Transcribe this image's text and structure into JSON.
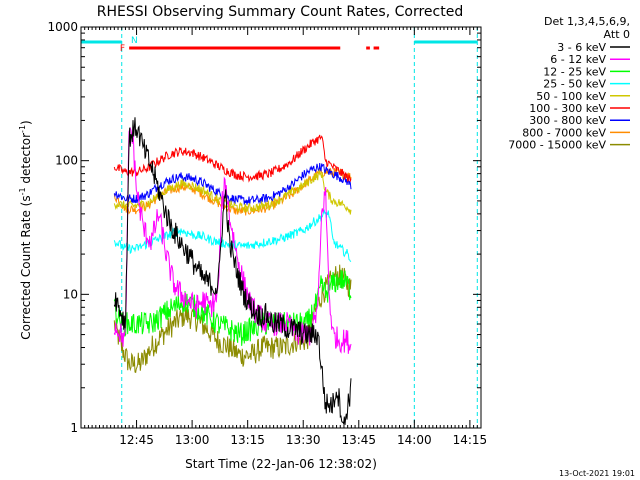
{
  "chart_data": {
    "type": "line",
    "title": "RHESSI Observing Summary Count Rates, Corrected",
    "xlabel": "Start Time (22-Jan-06 12:38:02)",
    "ylabel": "Corrected Count Rate (s",
    "ylabel_sup1": "-1",
    "ylabel_mid": " detector",
    "ylabel_sup2": "-1",
    "ylabel_end": ")",
    "y_scale": "log",
    "ylim": [
      1,
      1000
    ],
    "xlim_minutes": [
      -8,
      100
    ],
    "x_ticks": [
      {
        "label": "12:45",
        "minute": 7
      },
      {
        "label": "13:00",
        "minute": 22
      },
      {
        "label": "13:15",
        "minute": 37
      },
      {
        "label": "13:30",
        "minute": 52
      },
      {
        "label": "13:45",
        "minute": 67
      },
      {
        "label": "14:00",
        "minute": 82
      },
      {
        "label": "14:15",
        "minute": 97
      }
    ],
    "y_ticks": [
      {
        "label": "1",
        "value": 1
      },
      {
        "label": "10",
        "value": 10
      },
      {
        "label": "100",
        "value": 100
      },
      {
        "label": "1000",
        "value": 1000
      }
    ],
    "legend": {
      "placement": "right",
      "header1": "Det 1,3,4,5,6,9,",
      "header2": "Att 0"
    },
    "series": [
      {
        "name": "3 - 6 keV",
        "color": "#000000",
        "points": [
          [
            1,
            10
          ],
          [
            4,
            6
          ],
          [
            5,
            150
          ],
          [
            7,
            180
          ],
          [
            9,
            120
          ],
          [
            11,
            90
          ],
          [
            13,
            60
          ],
          [
            15,
            40
          ],
          [
            17,
            30
          ],
          [
            19,
            24
          ],
          [
            21,
            20
          ],
          [
            23,
            16
          ],
          [
            25,
            13
          ],
          [
            27,
            12
          ],
          [
            29,
            11
          ],
          [
            30,
            30
          ],
          [
            31,
            60
          ],
          [
            32,
            25
          ],
          [
            34,
            15
          ],
          [
            36,
            10
          ],
          [
            38,
            8
          ],
          [
            40,
            7
          ],
          [
            42,
            7
          ],
          [
            44,
            6
          ],
          [
            46,
            6
          ],
          [
            48,
            5.5
          ],
          [
            50,
            5.5
          ],
          [
            52,
            5
          ],
          [
            54,
            5
          ],
          [
            56,
            5
          ],
          [
            58,
            1.5
          ],
          [
            60,
            1.5
          ],
          [
            61,
            2
          ],
          [
            62,
            1.5
          ],
          [
            63,
            1
          ],
          [
            64,
            1.5
          ],
          [
            65,
            2
          ]
        ]
      },
      {
        "name": "6 - 12 keV",
        "color": "#ff00ff",
        "points": [
          [
            1,
            6
          ],
          [
            4,
            4.5
          ],
          [
            5,
            180
          ],
          [
            6,
            150
          ],
          [
            7,
            60
          ],
          [
            9,
            30
          ],
          [
            11,
            25
          ],
          [
            13,
            40
          ],
          [
            15,
            20
          ],
          [
            17,
            12
          ],
          [
            19,
            10
          ],
          [
            21,
            9
          ],
          [
            23,
            8
          ],
          [
            25,
            9
          ],
          [
            27,
            8
          ],
          [
            29,
            10
          ],
          [
            30,
            45
          ],
          [
            31,
            70
          ],
          [
            32,
            40
          ],
          [
            34,
            20
          ],
          [
            36,
            12
          ],
          [
            38,
            8
          ],
          [
            40,
            7
          ],
          [
            42,
            6
          ],
          [
            44,
            6
          ],
          [
            46,
            6
          ],
          [
            48,
            6
          ],
          [
            50,
            5
          ],
          [
            52,
            5
          ],
          [
            54,
            5
          ],
          [
            56,
            8
          ],
          [
            57,
            40
          ],
          [
            58,
            60
          ],
          [
            59,
            10
          ],
          [
            60,
            5
          ],
          [
            62,
            4.5
          ],
          [
            64,
            4.5
          ],
          [
            65,
            4
          ]
        ]
      },
      {
        "name": "12 - 25 keV",
        "color": "#00ff00",
        "points": [
          [
            1,
            8
          ],
          [
            3,
            6
          ],
          [
            5,
            6
          ],
          [
            8,
            6
          ],
          [
            11,
            6
          ],
          [
            14,
            7
          ],
          [
            17,
            8
          ],
          [
            20,
            9
          ],
          [
            23,
            8
          ],
          [
            26,
            7
          ],
          [
            29,
            6
          ],
          [
            32,
            5.5
          ],
          [
            35,
            5
          ],
          [
            38,
            5.5
          ],
          [
            41,
            6
          ],
          [
            44,
            6
          ],
          [
            47,
            6
          ],
          [
            50,
            6
          ],
          [
            53,
            6
          ],
          [
            56,
            9
          ],
          [
            57,
            12
          ],
          [
            58,
            10
          ],
          [
            60,
            12
          ],
          [
            62,
            13
          ],
          [
            64,
            12
          ],
          [
            65,
            10
          ]
        ]
      },
      {
        "name": "25 - 50 keV",
        "color": "#00ffff",
        "points": [
          [
            1,
            25
          ],
          [
            4,
            22
          ],
          [
            7,
            22
          ],
          [
            10,
            24
          ],
          [
            13,
            26
          ],
          [
            16,
            28
          ],
          [
            19,
            30
          ],
          [
            22,
            28
          ],
          [
            25,
            27
          ],
          [
            28,
            25
          ],
          [
            31,
            24
          ],
          [
            34,
            23
          ],
          [
            37,
            23
          ],
          [
            40,
            24
          ],
          [
            43,
            25
          ],
          [
            46,
            26
          ],
          [
            49,
            28
          ],
          [
            52,
            30
          ],
          [
            55,
            35
          ],
          [
            58,
            40
          ],
          [
            59,
            40
          ],
          [
            60,
            25
          ],
          [
            62,
            22
          ],
          [
            64,
            20
          ],
          [
            65,
            18
          ]
        ]
      },
      {
        "name": "50 - 100 keV",
        "color": "#cfc700",
        "points": [
          [
            1,
            48
          ],
          [
            4,
            46
          ],
          [
            7,
            46
          ],
          [
            10,
            48
          ],
          [
            13,
            55
          ],
          [
            16,
            62
          ],
          [
            19,
            67
          ],
          [
            22,
            65
          ],
          [
            25,
            60
          ],
          [
            28,
            53
          ],
          [
            31,
            48
          ],
          [
            34,
            45
          ],
          [
            37,
            44
          ],
          [
            40,
            45
          ],
          [
            43,
            47
          ],
          [
            46,
            52
          ],
          [
            49,
            58
          ],
          [
            52,
            65
          ],
          [
            55,
            75
          ],
          [
            57,
            80
          ],
          [
            58,
            60
          ],
          [
            60,
            50
          ],
          [
            62,
            48
          ],
          [
            64,
            45
          ],
          [
            65,
            42
          ]
        ]
      },
      {
        "name": "100 - 300 keV",
        "color": "#ff0000",
        "points": [
          [
            1,
            90
          ],
          [
            4,
            82
          ],
          [
            7,
            82
          ],
          [
            10,
            88
          ],
          [
            13,
            100
          ],
          [
            16,
            112
          ],
          [
            19,
            118
          ],
          [
            22,
            115
          ],
          [
            25,
            105
          ],
          [
            28,
            95
          ],
          [
            31,
            85
          ],
          [
            34,
            78
          ],
          [
            37,
            76
          ],
          [
            40,
            77
          ],
          [
            43,
            80
          ],
          [
            46,
            88
          ],
          [
            49,
            100
          ],
          [
            52,
            120
          ],
          [
            55,
            140
          ],
          [
            57,
            150
          ],
          [
            58,
            100
          ],
          [
            60,
            90
          ],
          [
            62,
            82
          ],
          [
            64,
            75
          ],
          [
            65,
            70
          ]
        ]
      },
      {
        "name": "300 - 800 keV",
        "color": "#0000ff",
        "points": [
          [
            1,
            58
          ],
          [
            4,
            52
          ],
          [
            7,
            52
          ],
          [
            10,
            56
          ],
          [
            13,
            65
          ],
          [
            16,
            72
          ],
          [
            19,
            76
          ],
          [
            22,
            74
          ],
          [
            25,
            68
          ],
          [
            28,
            60
          ],
          [
            31,
            54
          ],
          [
            34,
            51
          ],
          [
            37,
            50
          ],
          [
            40,
            51
          ],
          [
            43,
            53
          ],
          [
            46,
            58
          ],
          [
            49,
            66
          ],
          [
            52,
            78
          ],
          [
            55,
            88
          ],
          [
            57,
            90
          ],
          [
            58,
            85
          ],
          [
            60,
            80
          ],
          [
            62,
            75
          ],
          [
            64,
            70
          ],
          [
            65,
            65
          ]
        ]
      },
      {
        "name": "800 - 7000 keV",
        "color": "#ff8c00",
        "points": [
          [
            1,
            55
          ],
          [
            4,
            44
          ],
          [
            7,
            43
          ],
          [
            10,
            46
          ],
          [
            13,
            54
          ],
          [
            16,
            60
          ],
          [
            19,
            64
          ],
          [
            22,
            62
          ],
          [
            25,
            56
          ],
          [
            28,
            50
          ],
          [
            31,
            45
          ],
          [
            34,
            42
          ],
          [
            37,
            42
          ],
          [
            40,
            43
          ],
          [
            43,
            45
          ],
          [
            46,
            50
          ],
          [
            49,
            56
          ],
          [
            52,
            66
          ],
          [
            55,
            76
          ],
          [
            57,
            82
          ],
          [
            58,
            82
          ],
          [
            60,
            82
          ],
          [
            62,
            80
          ],
          [
            64,
            78
          ],
          [
            65,
            75
          ]
        ]
      },
      {
        "name": "7000 - 15000 keV",
        "color": "#8b8b00",
        "points": [
          [
            1,
            6
          ],
          [
            3,
            4
          ],
          [
            5,
            3
          ],
          [
            8,
            3
          ],
          [
            11,
            4
          ],
          [
            14,
            5
          ],
          [
            17,
            6
          ],
          [
            20,
            7
          ],
          [
            23,
            6.5
          ],
          [
            26,
            5.5
          ],
          [
            29,
            4.5
          ],
          [
            32,
            4
          ],
          [
            35,
            3.5
          ],
          [
            38,
            3.5
          ],
          [
            41,
            4
          ],
          [
            44,
            4
          ],
          [
            47,
            4
          ],
          [
            50,
            4.5
          ],
          [
            53,
            4.5
          ],
          [
            55,
            7
          ],
          [
            57,
            10
          ],
          [
            59,
            12
          ],
          [
            61,
            14
          ],
          [
            63,
            13
          ],
          [
            65,
            11
          ]
        ]
      }
    ],
    "annotations": {
      "intervals": [
        {
          "label": "N",
          "color": "#00e6e6",
          "segments": [
            [
              -8,
              3
            ],
            [
              82,
              99
            ]
          ]
        },
        {
          "label": "F",
          "color": "#ff0000",
          "segments": [
            [
              5,
              62
            ],
            [
              69,
              70
            ],
            [
              71,
              72.5
            ]
          ]
        }
      ],
      "saa_markers_minutes": [
        3,
        82,
        99
      ]
    }
  },
  "footer_timestamp": "13-Oct-2021 19:01"
}
